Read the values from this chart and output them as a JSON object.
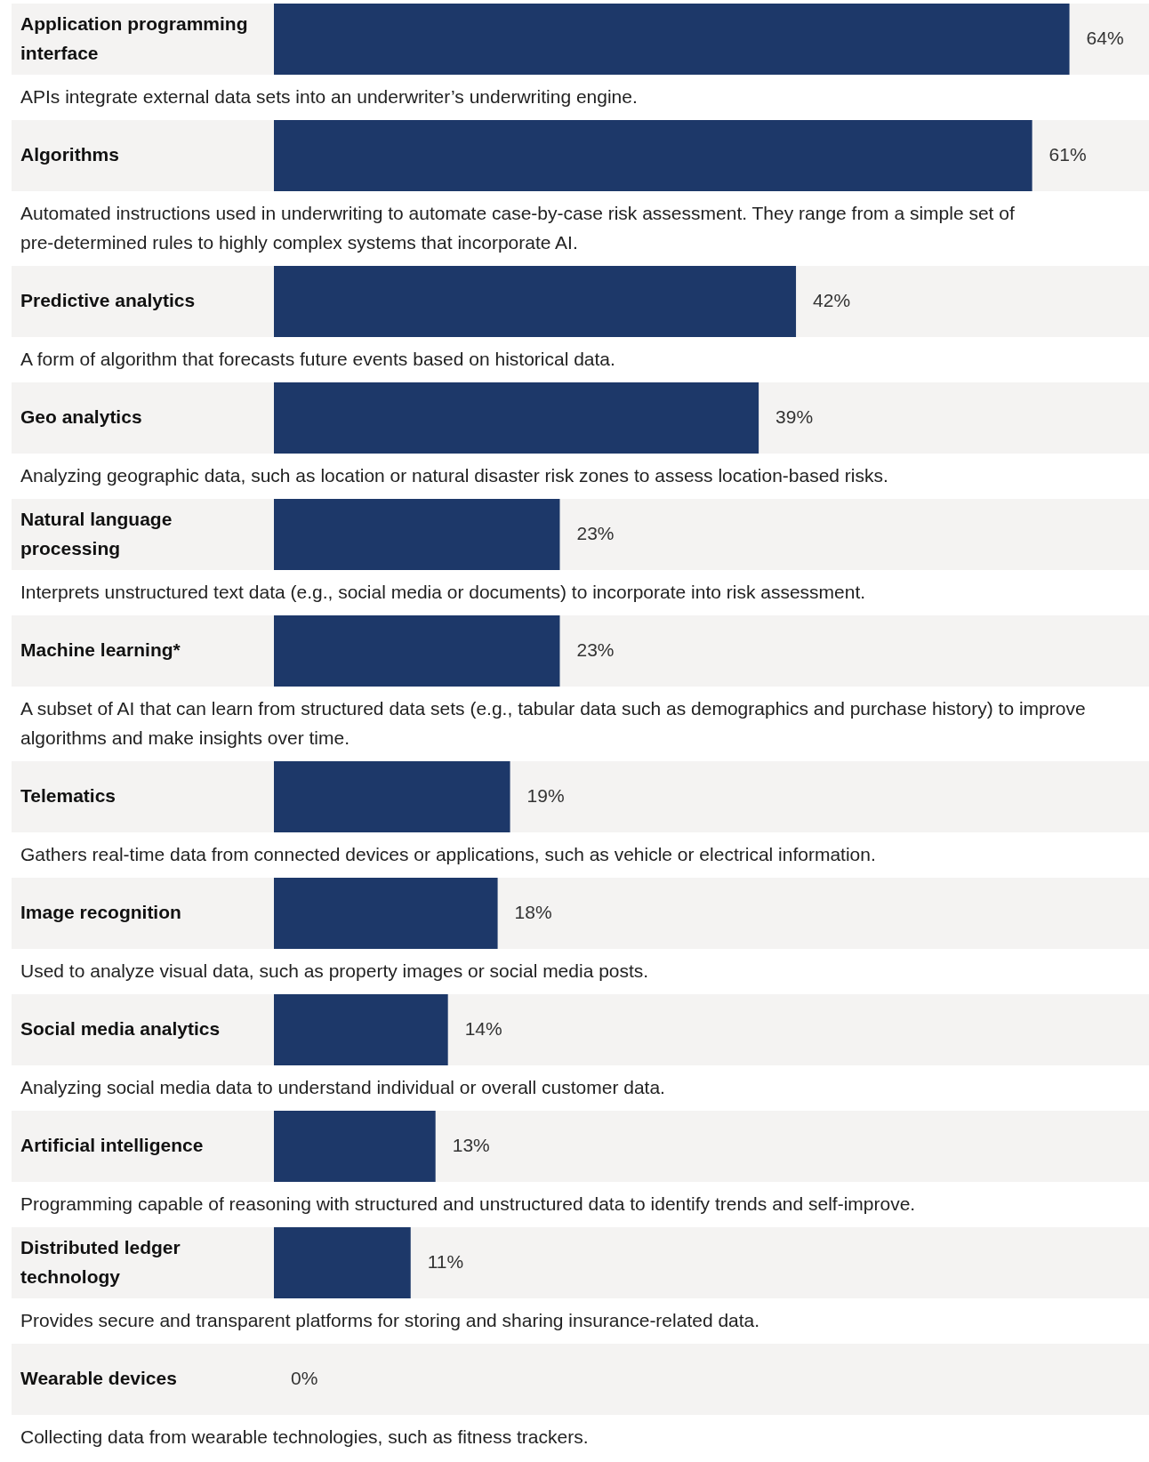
{
  "chart_data": {
    "type": "bar",
    "orientation": "horizontal",
    "color": "#1d3869",
    "categories": [
      "Application programming interface",
      "Algorithms",
      "Predictive analytics",
      "Geo analytics",
      "Natural language processing",
      "Machine learning*",
      "Telematics",
      "Image recognition",
      "Social media analytics",
      "Artificial intelligence",
      "Distributed ledger technology",
      "Wearable devices"
    ],
    "values": [
      64,
      61,
      42,
      39,
      23,
      23,
      19,
      18,
      14,
      13,
      11,
      0
    ],
    "value_labels": [
      "64%",
      "61%",
      "42%",
      "39%",
      "23%",
      "23%",
      "19%",
      "18%",
      "14%",
      "13%",
      "11%",
      "0%"
    ],
    "annotations": [
      "APIs integrate external data sets into an underwriter’s underwriting engine.",
      "Automated instructions used in underwriting to automate case-by-case risk assessment. They range from a simple set of pre-determined rules to highly complex systems that incorporate AI.",
      "A form of algorithm that forecasts future events based on historical data.",
      "Analyzing geographic data, such as location or natural disaster risk zones to assess location-based risks.",
      "Interprets unstructured text data (e.g., social media or documents) to incorporate into risk assessment.",
      "A subset of AI that can learn from structured data sets (e.g., tabular data such as demographics and purchase history) to improve algorithms and make insights over time.",
      "Gathers real-time data from connected devices or applications, such as vehicle or electrical information.",
      "Used to analyze visual data, such as property images or social media posts.",
      "Analyzing social media data to understand individual or overall customer data.",
      "Programming capable of reasoning with structured and unstructured data to identify trends and self-improve.",
      "Provides secure and transparent platforms for storing and sharing insurance-related data.",
      "Collecting data from wearable technologies, such as fitness trackers."
    ]
  }
}
